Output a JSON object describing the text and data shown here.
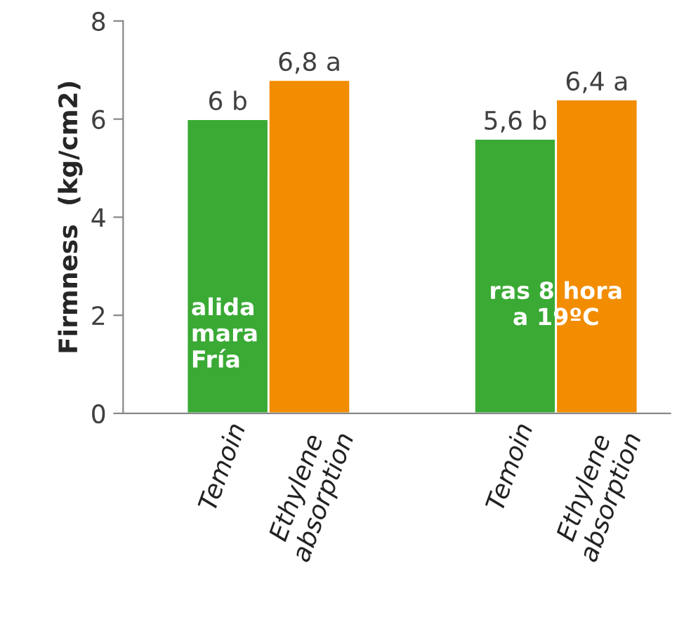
{
  "chart_data": {
    "type": "bar",
    "ylabel": "Firmness  (kg/cm2)",
    "categories": [
      "Temoin",
      "Ethylene absorption",
      "Temoin",
      "Ethylene absorption"
    ],
    "values": [
      6,
      6.8,
      5.6,
      6.4
    ],
    "colors": [
      "#3aaa35",
      "#f28c00",
      "#3aaa35",
      "#f28c00"
    ],
    "value_labels": [
      "6 b",
      "6,8 a",
      "5,6 b",
      "6,4 a"
    ],
    "annotations": [
      "alida\nmara\nFría",
      "ras 8 hora\na 19ºC"
    ],
    "ylim": [
      0,
      8
    ],
    "yticks": [
      0,
      2,
      4,
      6,
      8
    ],
    "grid": false,
    "legend": false
  }
}
